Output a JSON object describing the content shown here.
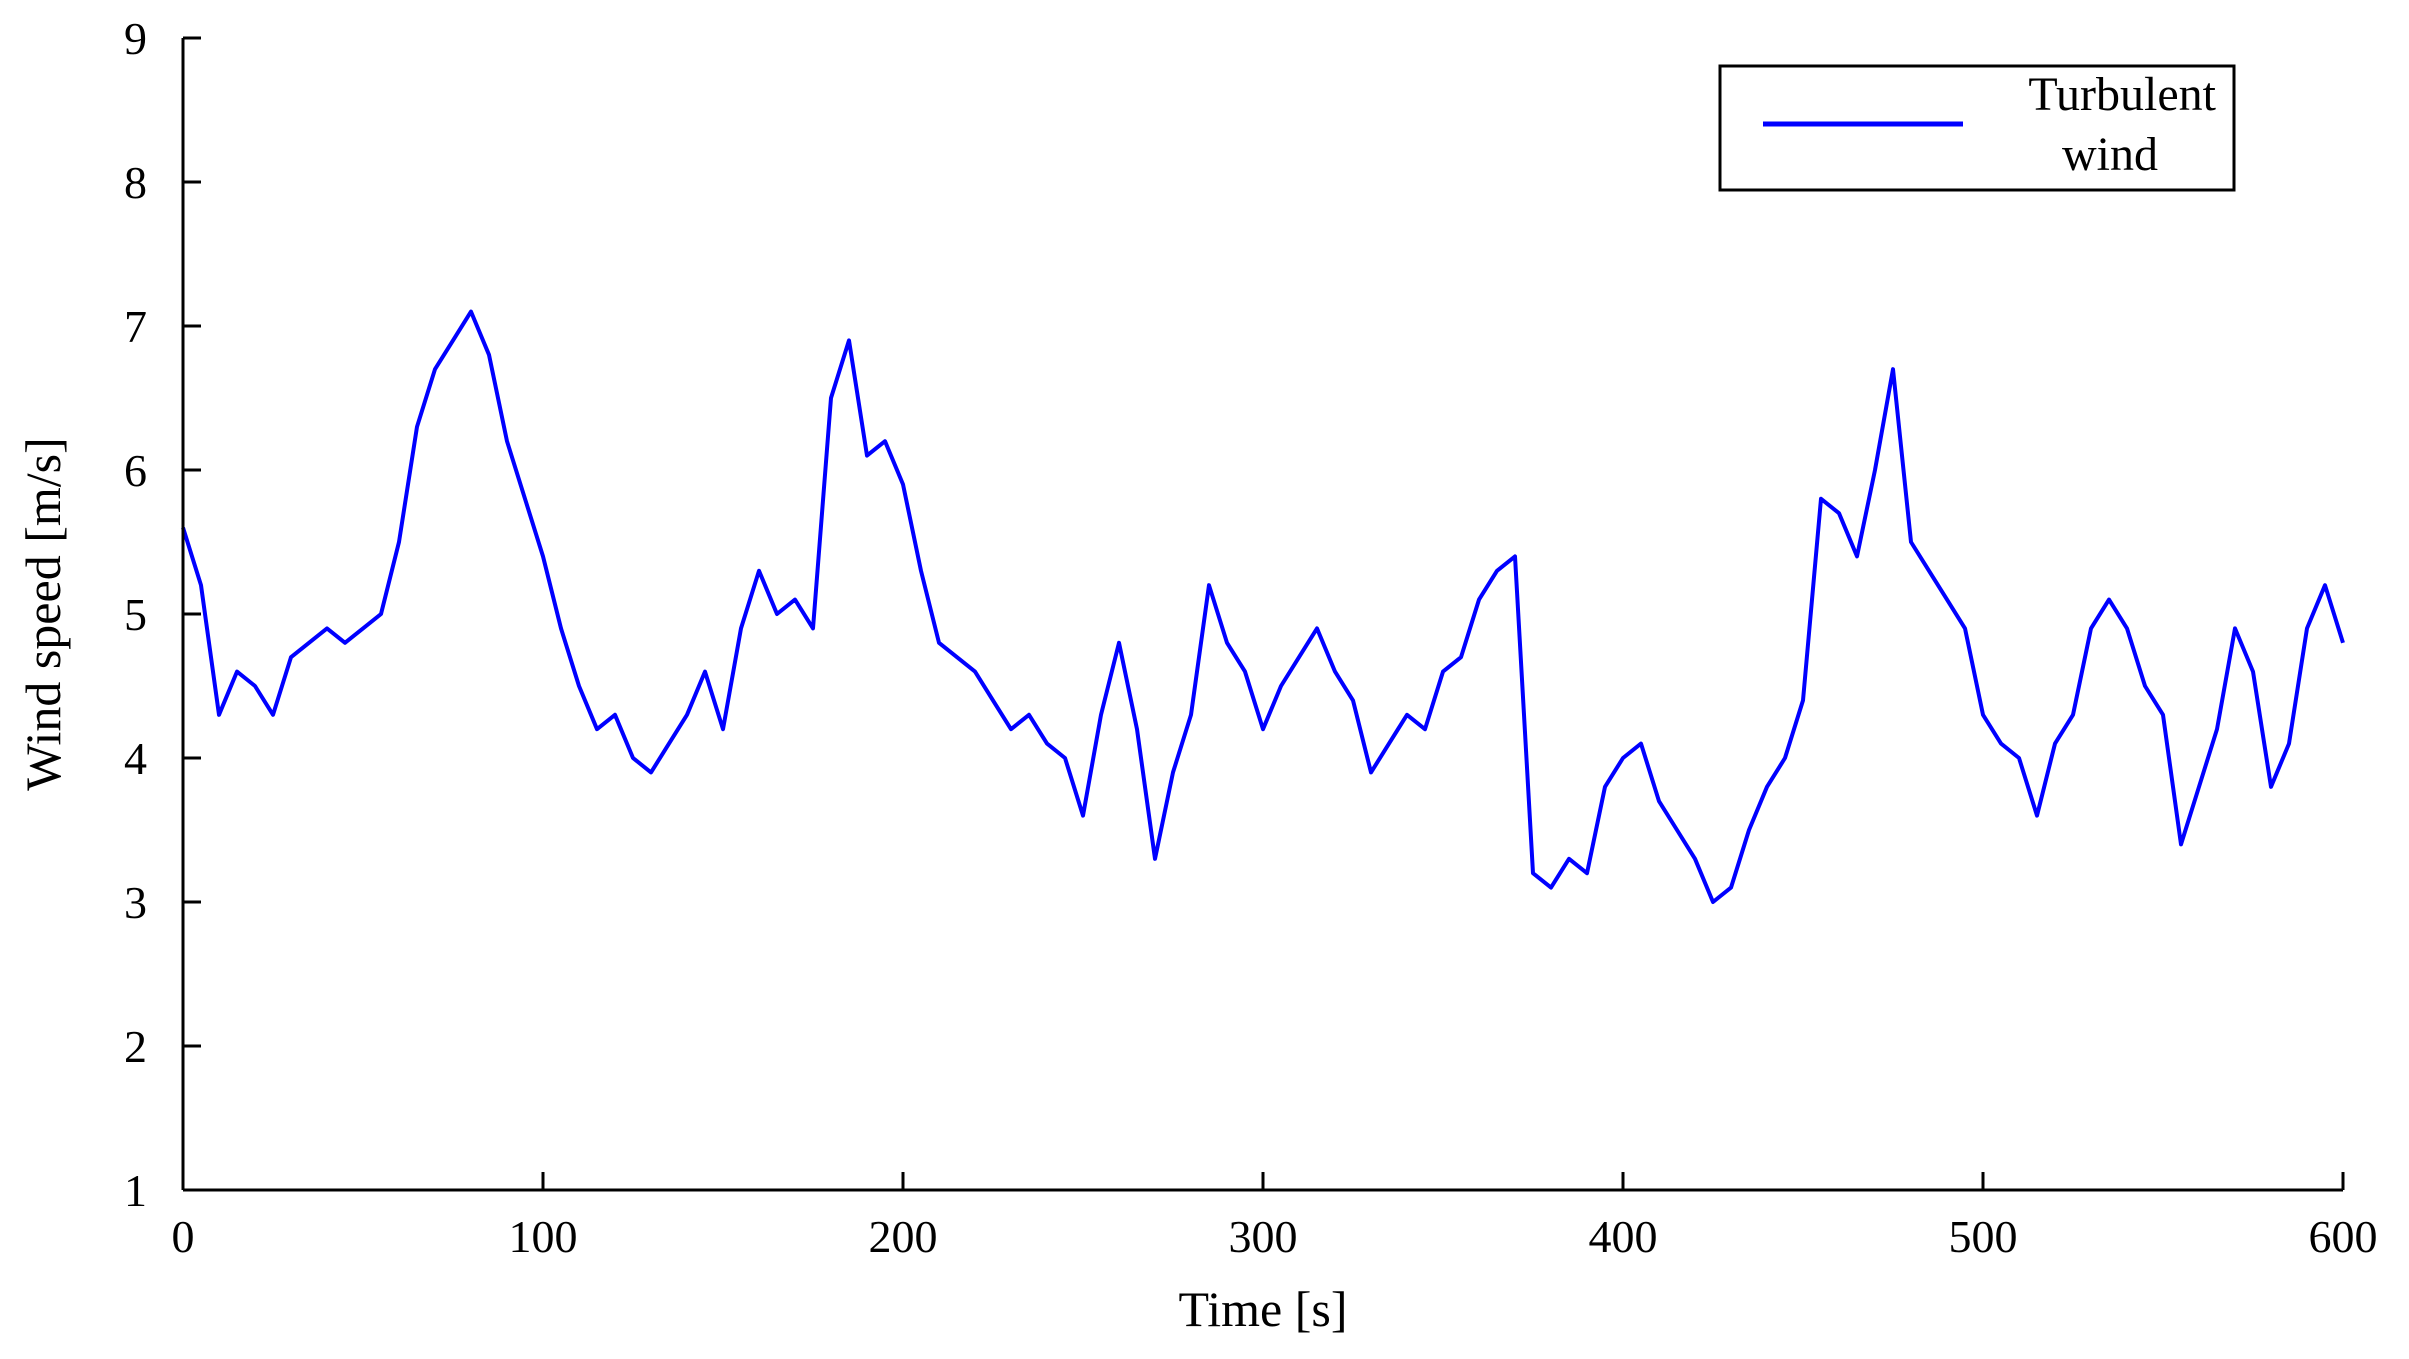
{
  "chart_data": {
    "type": "line",
    "xlabel": "Time [s]",
    "ylabel": "Wind speed [m/s]",
    "xlim": [
      0,
      600
    ],
    "ylim": [
      1,
      9
    ],
    "x_ticks": [
      0,
      100,
      200,
      300,
      400,
      500,
      600
    ],
    "y_ticks": [
      1,
      2,
      3,
      4,
      5,
      6,
      7,
      8,
      9
    ],
    "grid": false,
    "legend_position": "top-right",
    "series": [
      {
        "name": "Turbulent wind",
        "color": "#0000ff",
        "x": [
          0,
          5,
          10,
          15,
          20,
          25,
          30,
          35,
          40,
          45,
          50,
          55,
          60,
          65,
          70,
          75,
          80,
          85,
          90,
          95,
          100,
          105,
          110,
          115,
          120,
          125,
          130,
          135,
          140,
          145,
          150,
          155,
          160,
          165,
          170,
          175,
          180,
          185,
          190,
          195,
          200,
          205,
          210,
          215,
          220,
          225,
          230,
          235,
          240,
          245,
          250,
          255,
          260,
          265,
          270,
          275,
          280,
          285,
          290,
          295,
          300,
          305,
          310,
          315,
          320,
          325,
          330,
          335,
          340,
          345,
          350,
          355,
          360,
          365,
          370,
          375,
          380,
          385,
          390,
          395,
          400,
          405,
          410,
          415,
          420,
          425,
          430,
          435,
          440,
          445,
          450,
          455,
          460,
          465,
          470,
          475,
          480,
          485,
          490,
          495,
          500,
          505,
          510,
          515,
          520,
          525,
          530,
          535,
          540,
          545,
          550,
          555,
          560,
          565,
          570,
          575,
          580,
          585,
          590,
          595,
          600
        ],
        "values": [
          5.6,
          5.2,
          4.3,
          4.6,
          4.5,
          4.3,
          4.7,
          4.8,
          4.9,
          4.8,
          4.9,
          5.0,
          5.5,
          6.3,
          6.7,
          6.9,
          7.1,
          6.8,
          6.2,
          5.8,
          5.4,
          4.9,
          4.5,
          4.2,
          4.3,
          4.0,
          3.9,
          4.1,
          4.3,
          4.6,
          4.2,
          4.9,
          5.3,
          5.0,
          5.1,
          4.9,
          6.5,
          6.9,
          6.1,
          6.2,
          5.9,
          5.3,
          4.8,
          4.7,
          4.6,
          4.4,
          4.2,
          4.3,
          4.1,
          4.0,
          3.6,
          4.3,
          4.8,
          4.2,
          3.3,
          3.9,
          4.3,
          5.2,
          4.8,
          4.6,
          4.2,
          4.5,
          4.7,
          4.9,
          4.6,
          4.4,
          3.9,
          4.1,
          4.3,
          4.2,
          4.6,
          4.7,
          5.1,
          5.3,
          5.4,
          3.2,
          3.1,
          3.3,
          3.2,
          3.8,
          4.0,
          4.1,
          3.7,
          3.5,
          3.3,
          3.0,
          3.1,
          3.5,
          3.8,
          4.0,
          4.4,
          5.8,
          5.7,
          5.4,
          6.0,
          6.7,
          5.5,
          5.3,
          5.1,
          4.9,
          4.3,
          4.1,
          4.0,
          3.6,
          4.1,
          4.3,
          4.9,
          5.1,
          4.9,
          4.5,
          4.3,
          3.4,
          3.8,
          4.2,
          4.9,
          4.6,
          3.8,
          4.1,
          4.9,
          5.2,
          4.8
        ]
      }
    ]
  }
}
